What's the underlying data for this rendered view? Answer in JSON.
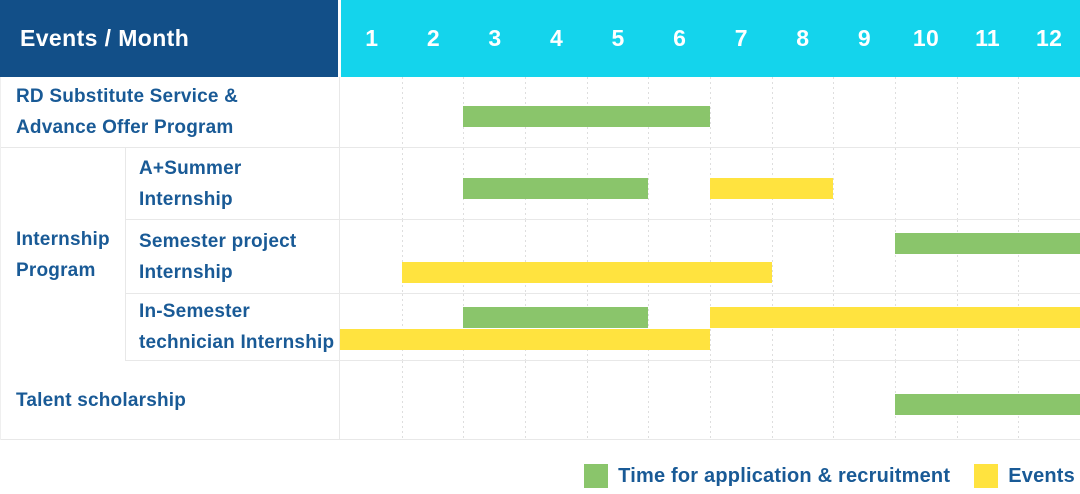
{
  "header": {
    "title": "Events / Month",
    "months": [
      "1",
      "2",
      "3",
      "4",
      "5",
      "6",
      "7",
      "8",
      "9",
      "10",
      "11",
      "12"
    ]
  },
  "colors": {
    "header_bg": "#124F88",
    "months_bg": "#14D4EC",
    "bar_green": "#8AC56B",
    "bar_yellow": "#FFE33F",
    "label_text": "#195A96"
  },
  "group": {
    "label_lines": [
      "Internship",
      "Program"
    ]
  },
  "rows": [
    {
      "id": "rd-substitute-service",
      "label_lines": [
        "RD Substitute Service &",
        "Advance Offer Program"
      ],
      "bars": [
        {
          "color": "green",
          "start_month": 3,
          "end_month": 6,
          "lane": "mid"
        }
      ]
    },
    {
      "id": "a-plus-summer-internship",
      "label_lines": [
        "A+Summer",
        "Internship"
      ],
      "bars": [
        {
          "color": "green",
          "start_month": 3,
          "end_month": 5,
          "lane": "mid"
        },
        {
          "color": "yellow",
          "start_month": 7,
          "end_month": 8,
          "lane": "mid"
        }
      ]
    },
    {
      "id": "semester-project-internship",
      "label_lines": [
        "Semester project",
        "Internship"
      ],
      "bars": [
        {
          "color": "green",
          "start_month": 10,
          "end_month": 12,
          "lane": "top"
        },
        {
          "color": "yellow",
          "start_month": 2,
          "end_month": 7,
          "lane": "bottom"
        }
      ]
    },
    {
      "id": "in-semester-technician-internship",
      "label_lines": [
        "In-Semester",
        "technician Internship"
      ],
      "bars": [
        {
          "color": "green",
          "start_month": 3,
          "end_month": 5,
          "lane": "top"
        },
        {
          "color": "yellow",
          "start_month": 7,
          "end_month": 12,
          "lane": "top"
        },
        {
          "color": "yellow",
          "start_month": 1,
          "end_month": 6,
          "lane": "bottom"
        }
      ]
    },
    {
      "id": "talent-scholarship",
      "label_lines": [
        "Talent scholarship"
      ],
      "bars": [
        {
          "color": "green",
          "start_month": 10,
          "end_month": 12,
          "lane": "mid"
        }
      ]
    }
  ],
  "legend": {
    "items": [
      {
        "color": "green",
        "label": "Time for application & recruitment"
      },
      {
        "color": "yellow",
        "label": "Events"
      }
    ]
  },
  "chart_data": {
    "type": "gantt",
    "title": "Events / Month",
    "x_axis": {
      "label": "Month",
      "ticks": [
        1,
        2,
        3,
        4,
        5,
        6,
        7,
        8,
        9,
        10,
        11,
        12
      ],
      "range": [
        1,
        12
      ]
    },
    "legend": [
      "Time for application & recruitment",
      "Events"
    ],
    "legend_position": "bottom-right",
    "grid": "vertical-dotted-month-lines",
    "rows": [
      {
        "category": "RD Substitute Service & Advance Offer Program",
        "group": null,
        "spans": [
          {
            "series": "Time for application & recruitment",
            "start_month": 3,
            "end_month": 6
          }
        ]
      },
      {
        "category": "A+Summer Internship",
        "group": "Internship Program",
        "spans": [
          {
            "series": "Time for application & recruitment",
            "start_month": 3,
            "end_month": 5
          },
          {
            "series": "Events",
            "start_month": 7,
            "end_month": 8
          }
        ]
      },
      {
        "category": "Semester project Internship",
        "group": "Internship Program",
        "spans": [
          {
            "series": "Time for application & recruitment",
            "start_month": 10,
            "end_month": 12
          },
          {
            "series": "Events",
            "start_month": 2,
            "end_month": 7
          }
        ]
      },
      {
        "category": "In-Semester technician Internship",
        "group": "Internship Program",
        "spans": [
          {
            "series": "Time for application & recruitment",
            "start_month": 3,
            "end_month": 5
          },
          {
            "series": "Events",
            "start_month": 7,
            "end_month": 12
          },
          {
            "series": "Events",
            "start_month": 1,
            "end_month": 6
          }
        ]
      },
      {
        "category": "Talent scholarship",
        "group": null,
        "spans": [
          {
            "series": "Time for application & recruitment",
            "start_month": 10,
            "end_month": 12
          }
        ]
      }
    ],
    "series_colors": {
      "Time for application & recruitment": "#8AC56B",
      "Events": "#FFE33F"
    }
  }
}
